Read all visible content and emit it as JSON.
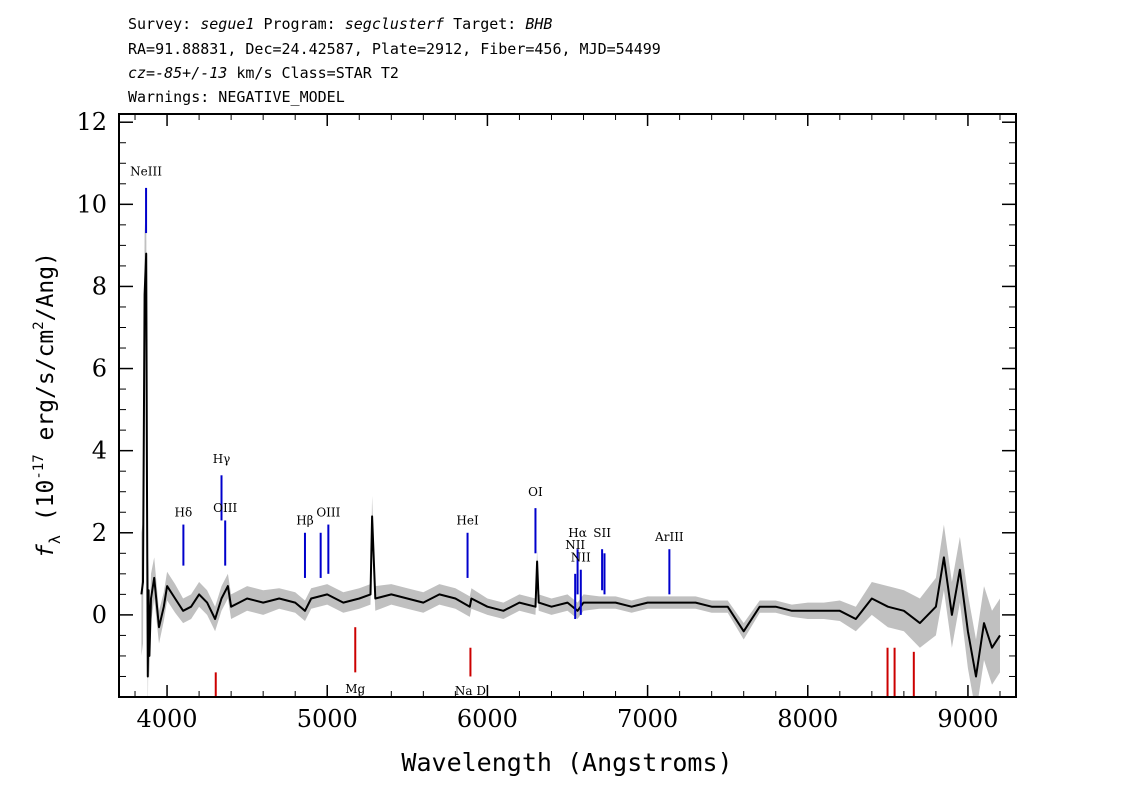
{
  "header": {
    "line1": {
      "survey_label": "Survey: ",
      "survey": "segue1",
      "program_label": " Program: ",
      "program": "segclusterf",
      "target_label": " Target: ",
      "target": "BHB"
    },
    "line2": "RA=91.88831, Dec=24.42587, Plate=2912, Fiber=456, MJD=54499",
    "line3": {
      "cz_label": "cz=",
      "cz_value": "-85+/-13",
      "rest": " km/s Class=STAR T2"
    },
    "line4": "Warnings: NEGATIVE_MODEL"
  },
  "colors": {
    "flux": "#000000",
    "error": "#c0c0c0",
    "emission": "#0000cc",
    "absorption": "#cc0000",
    "axis": "#000000"
  },
  "chart_data": {
    "type": "line",
    "xlabel": "Wavelength (Angstroms)",
    "ylabel": {
      "f": "f",
      "lambda": "λ",
      "open": " (10",
      "exp": "-17",
      "units": " erg/s/cm",
      "sq": "2",
      "close": "/Ang)"
    },
    "xlim": [
      3700,
      9300
    ],
    "ylim": [
      -2,
      12.2
    ],
    "xticks": [
      4000,
      5000,
      6000,
      7000,
      8000,
      9000
    ],
    "yticks": [
      0,
      2,
      4,
      6,
      8,
      10,
      12
    ],
    "series": [
      {
        "x": [
          3840,
          3850,
          3860,
          3870,
          3875,
          3880,
          3885,
          3890,
          3900,
          3920,
          3950,
          3980,
          4000,
          4050,
          4100,
          4150,
          4200,
          4250,
          4300,
          4340,
          4380,
          4400,
          4450,
          4500,
          4600,
          4700,
          4800,
          4861,
          4900,
          5000,
          5100,
          5200,
          5270,
          5280,
          5300,
          5400,
          5500,
          5600,
          5700,
          5800,
          5890,
          5900,
          6000,
          6100,
          6200,
          6300,
          6310,
          6320,
          6400,
          6500,
          6563,
          6600,
          6700,
          6800,
          6900,
          7000,
          7100,
          7200,
          7300,
          7400,
          7500,
          7600,
          7700,
          7800,
          7900,
          8000,
          8100,
          8200,
          8300,
          8400,
          8500,
          8600,
          8700,
          8800,
          8850,
          8900,
          8950,
          9000,
          9050,
          9100,
          9150,
          9200
        ],
        "values": [
          0.5,
          0.8,
          7.8,
          8.8,
          3.0,
          -1.5,
          0.6,
          -1.0,
          0.4,
          0.9,
          -0.3,
          0.2,
          0.7,
          0.4,
          0.1,
          0.2,
          0.5,
          0.3,
          -0.1,
          0.4,
          0.7,
          0.2,
          0.3,
          0.4,
          0.3,
          0.4,
          0.3,
          0.1,
          0.4,
          0.5,
          0.3,
          0.4,
          0.5,
          2.4,
          0.4,
          0.5,
          0.4,
          0.3,
          0.5,
          0.4,
          0.2,
          0.4,
          0.2,
          0.1,
          0.3,
          0.2,
          1.3,
          0.3,
          0.2,
          0.3,
          0.1,
          0.3,
          0.3,
          0.3,
          0.2,
          0.3,
          0.3,
          0.3,
          0.3,
          0.2,
          0.2,
          -0.4,
          0.2,
          0.2,
          0.1,
          0.1,
          0.1,
          0.1,
          -0.1,
          0.4,
          0.2,
          0.1,
          -0.2,
          0.2,
          1.4,
          0.0,
          1.1,
          -0.4,
          -1.5,
          -0.2,
          -0.8,
          -0.5
        ]
      }
    ],
    "error_band": [
      1.5,
      1.5,
      1.5,
      1.5,
      1.0,
      1.0,
      0.8,
      0.6,
      0.6,
      0.5,
      0.4,
      0.35,
      0.35,
      0.35,
      0.3,
      0.3,
      0.3,
      0.3,
      0.3,
      0.3,
      0.3,
      0.3,
      0.3,
      0.3,
      0.3,
      0.25,
      0.25,
      0.25,
      0.25,
      0.25,
      0.25,
      0.25,
      0.25,
      0.5,
      0.3,
      0.25,
      0.25,
      0.25,
      0.25,
      0.25,
      0.25,
      0.25,
      0.2,
      0.2,
      0.2,
      0.2,
      0.3,
      0.2,
      0.2,
      0.2,
      0.2,
      0.2,
      0.15,
      0.15,
      0.15,
      0.15,
      0.15,
      0.15,
      0.15,
      0.15,
      0.15,
      0.2,
      0.15,
      0.15,
      0.15,
      0.2,
      0.2,
      0.25,
      0.3,
      0.4,
      0.5,
      0.5,
      0.6,
      0.7,
      0.8,
      0.8,
      0.8,
      0.9,
      0.9,
      0.9,
      0.9,
      0.9
    ],
    "emission_lines": [
      {
        "label": "NeIII",
        "x": 3869,
        "y0": 9.3,
        "y1": 10.4,
        "label_y": 10.7
      },
      {
        "label": "Hδ",
        "x": 4102,
        "y0": 1.2,
        "y1": 2.2,
        "label_y": 2.4
      },
      {
        "label": "Hγ",
        "x": 4340,
        "y0": 2.3,
        "y1": 3.4,
        "label_y": 3.7
      },
      {
        "label": "OIII",
        "x": 4363,
        "y0": 1.2,
        "y1": 2.3,
        "label_y": 2.5
      },
      {
        "label": "Hβ",
        "x": 4861,
        "y0": 0.9,
        "y1": 2.0,
        "label_y": 2.2
      },
      {
        "label": "OIII",
        "x": 4959,
        "y0": 0.9,
        "y1": 2.0,
        "label_y": null
      },
      {
        "label": "OIII",
        "x": 5007,
        "y0": 1.0,
        "y1": 2.2,
        "label_y": 2.4
      },
      {
        "label": "HeI",
        "x": 5876,
        "y0": 0.9,
        "y1": 2.0,
        "label_y": 2.2
      },
      {
        "label": "OI",
        "x": 6300,
        "y0": 1.5,
        "y1": 2.6,
        "label_y": 2.9
      },
      {
        "label": "NII",
        "x": 6548,
        "y0": -0.1,
        "y1": 1.0,
        "label_y": 1.6
      },
      {
        "label": "Hα",
        "x": 6563,
        "y0": 0.5,
        "y1": 1.6,
        "label_y": 1.9
      },
      {
        "label": "NII",
        "x": 6583,
        "y0": 0.0,
        "y1": 1.1,
        "label_y": 1.3
      },
      {
        "label": "SII",
        "x": 6716,
        "y0": 0.6,
        "y1": 1.6,
        "label_y": 1.9
      },
      {
        "label": "SII",
        "x": 6731,
        "y0": 0.5,
        "y1": 1.5,
        "label_y": null
      },
      {
        "label": "ArIII",
        "x": 7136,
        "y0": 0.5,
        "y1": 1.6,
        "label_y": 1.8
      }
    ],
    "absorption_lines": [
      {
        "label": "Mg",
        "x": 5175,
        "y0": -0.3,
        "y1": -1.4,
        "label_y": -1.9
      },
      {
        "label": "Na D",
        "x": 5894,
        "y0": -0.8,
        "y1": -1.5,
        "label_y": -1.95
      },
      {
        "label": "",
        "x": 4304,
        "y0": -1.4,
        "y1": -2.0,
        "label_y": null
      },
      {
        "label": "",
        "x": 8498,
        "y0": -0.8,
        "y1": -2.0,
        "label_y": null
      },
      {
        "label": "",
        "x": 8542,
        "y0": -0.8,
        "y1": -2.0,
        "label_y": null
      },
      {
        "label": "",
        "x": 8662,
        "y0": -0.9,
        "y1": -2.0,
        "label_y": null
      }
    ]
  }
}
